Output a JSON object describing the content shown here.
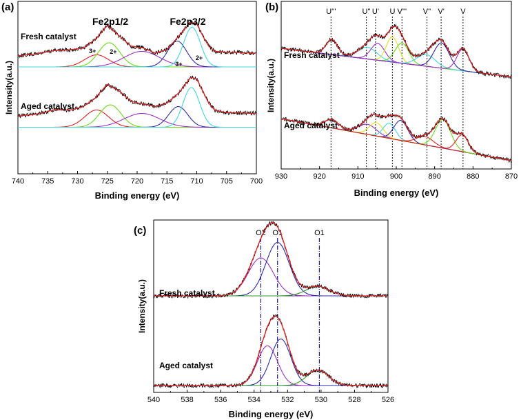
{
  "chart_data": [
    {
      "type": "line",
      "panel": "(a)",
      "title": "",
      "xlabel": "Binding energy (eV)",
      "ylabel": "Intensity(a.u.)",
      "xlim": [
        740,
        700
      ],
      "xticks": [
        740,
        735,
        730,
        725,
        720,
        715,
        710,
        705,
        700
      ],
      "samples": [
        {
          "name": "Fresh catalyst",
          "baseline": 0.62,
          "envelope": [
            [
              740,
              0.685
            ],
            [
              737,
              0.695
            ],
            [
              734,
              0.715
            ],
            [
              731,
              0.72
            ],
            [
              729,
              0.73
            ],
            [
              727,
              0.78
            ],
            [
              725,
              0.86
            ],
            [
              723,
              0.8
            ],
            [
              721,
              0.74
            ],
            [
              719,
              0.73
            ],
            [
              717,
              0.7
            ],
            [
              715,
              0.72
            ],
            [
              713,
              0.8
            ],
            [
              711,
              0.88
            ],
            [
              710,
              0.87
            ],
            [
              709,
              0.8
            ],
            [
              708,
              0.74
            ],
            [
              707,
              0.71
            ],
            [
              705,
              0.705
            ],
            [
              700,
              0.7
            ]
          ],
          "components": [
            {
              "name": "Fe3+ (2p1/2)",
              "center": 726.8,
              "height": 0.07,
              "width": 2.0,
              "color": "#e02020"
            },
            {
              "name": "Fe2+ (2p1/2)",
              "center": 724.7,
              "height": 0.14,
              "width": 1.8,
              "color": "#66dd11"
            },
            {
              "name": "satellite",
              "center": 719.2,
              "height": 0.09,
              "width": 3.0,
              "color": "#a030c8"
            },
            {
              "name": "Fe3+ (2p3/2)",
              "center": 713.3,
              "height": 0.15,
              "width": 1.6,
              "color": "#2a2ab0"
            },
            {
              "name": "Fe2+ (2p3/2)",
              "center": 710.8,
              "height": 0.23,
              "width": 1.4,
              "color": "#3dd8e0"
            }
          ],
          "annotations": [
            {
              "text": "Fe2p1/2",
              "at": 724.5
            },
            {
              "text": "Fe2p3/2",
              "at": 711.5
            },
            {
              "text": "3+",
              "at": 727.5
            },
            {
              "text": "2+",
              "at": 724.0
            },
            {
              "text": "3+",
              "at": 713.0
            },
            {
              "text": "2+",
              "at": 709.6
            }
          ]
        },
        {
          "name": "Aged catalyst",
          "baseline": 0.27,
          "envelope": [
            [
              740,
              0.335
            ],
            [
              737,
              0.345
            ],
            [
              734,
              0.37
            ],
            [
              731,
              0.37
            ],
            [
              729,
              0.39
            ],
            [
              727,
              0.44
            ],
            [
              725,
              0.52
            ],
            [
              723,
              0.48
            ],
            [
              721,
              0.42
            ],
            [
              719,
              0.405
            ],
            [
              717,
              0.39
            ],
            [
              715,
              0.41
            ],
            [
              713,
              0.47
            ],
            [
              711,
              0.56
            ],
            [
              710,
              0.55
            ],
            [
              709,
              0.48
            ],
            [
              708,
              0.41
            ],
            [
              707,
              0.37
            ],
            [
              705,
              0.355
            ],
            [
              700,
              0.35
            ]
          ],
          "components": [
            {
              "name": "Fe3+ (2p1/2)",
              "center": 726.8,
              "height": 0.1,
              "width": 2.0,
              "color": "#e02020"
            },
            {
              "name": "Fe2+ (2p1/2)",
              "center": 724.5,
              "height": 0.13,
              "width": 1.8,
              "color": "#66dd11"
            },
            {
              "name": "satellite",
              "center": 719.2,
              "height": 0.08,
              "width": 3.0,
              "color": "#a030c8"
            },
            {
              "name": "Fe3+ (2p3/2)",
              "center": 713.1,
              "height": 0.12,
              "width": 1.6,
              "color": "#2a2ab0"
            },
            {
              "name": "Fe2+ (2p3/2)",
              "center": 710.9,
              "height": 0.23,
              "width": 1.4,
              "color": "#3dd8e0"
            }
          ],
          "annotations": []
        }
      ]
    },
    {
      "type": "line",
      "panel": "(b)",
      "title": "",
      "xlabel": "Binding energy (eV)",
      "ylabel": "Intensity(a.u.)",
      "xlim": [
        930,
        870
      ],
      "xticks": [
        930,
        920,
        910,
        900,
        890,
        880,
        870
      ],
      "peak_labels": [
        {
          "text": "U'''",
          "at": 917
        },
        {
          "text": "U''",
          "at": 907.8
        },
        {
          "text": "U'",
          "at": 905.4
        },
        {
          "text": "U",
          "at": 901
        },
        {
          "text": "V'''",
          "at": 898.5
        },
        {
          "text": "V''",
          "at": 892
        },
        {
          "text": "V'",
          "at": 888.3
        },
        {
          "text": "V",
          "at": 882.6
        }
      ],
      "samples": [
        {
          "name": "Fresh catalyst",
          "baseline_linear": [
            [
              930,
              0.72
            ],
            [
              870,
              0.55
            ]
          ],
          "components": [
            {
              "name": "U'''",
              "center": 916.8,
              "height": 0.09,
              "width": 1.5,
              "color": "#2a2ab0"
            },
            {
              "name": "U''",
              "center": 907.5,
              "height": 0.07,
              "width": 2.5,
              "color": "#3dd8e0"
            },
            {
              "name": "U'",
              "center": 904.8,
              "height": 0.1,
              "width": 1.8,
              "color": "#a030c8"
            },
            {
              "name": "U",
              "center": 901.0,
              "height": 0.15,
              "width": 1.6,
              "color": "#e0e020"
            },
            {
              "name": "V'''",
              "center": 898.5,
              "height": 0.12,
              "width": 1.8,
              "color": "#66dd11"
            },
            {
              "name": "V''",
              "center": 892.2,
              "height": 0.07,
              "width": 2.4,
              "color": "#3dd8e0"
            },
            {
              "name": "V'",
              "center": 888.2,
              "height": 0.15,
              "width": 2.0,
              "color": "#2a2ab0"
            },
            {
              "name": "V",
              "center": 882.6,
              "height": 0.13,
              "width": 1.6,
              "color": "#a030c8"
            }
          ]
        },
        {
          "name": "Aged catalyst",
          "baseline_linear": [
            [
              930,
              0.3
            ],
            [
              870,
              0.05
            ]
          ],
          "components": [
            {
              "name": "U'''",
              "center": 916.8,
              "height": 0.05,
              "width": 1.8,
              "color": "#66dd11"
            },
            {
              "name": "U''",
              "center": 907.5,
              "height": 0.06,
              "width": 2.4,
              "color": "#a030c8"
            },
            {
              "name": "U'",
              "center": 905.2,
              "height": 0.08,
              "width": 1.8,
              "color": "#e0e020"
            },
            {
              "name": "U",
              "center": 901.8,
              "height": 0.09,
              "width": 1.6,
              "color": "#3dd8e0"
            },
            {
              "name": "V'''",
              "center": 898.8,
              "height": 0.12,
              "width": 1.8,
              "color": "#2a2ab0"
            },
            {
              "name": "V''",
              "center": 892.5,
              "height": 0.05,
              "width": 2.2,
              "color": "#e02020"
            },
            {
              "name": "V'",
              "center": 887.8,
              "height": 0.17,
              "width": 2.0,
              "color": "#66dd11"
            },
            {
              "name": "V",
              "center": 882.8,
              "height": 0.1,
              "width": 1.6,
              "color": "#e02020"
            }
          ]
        }
      ]
    },
    {
      "type": "line",
      "panel": "(c)",
      "title": "",
      "xlabel": "Binding energy (eV)",
      "ylabel": "Intensity(a.u.)",
      "xlim": [
        540,
        526
      ],
      "xticks": [
        540,
        538,
        536,
        534,
        532,
        530,
        528,
        526
      ],
      "peak_labels": [
        {
          "text": "O2",
          "at": 533.6
        },
        {
          "text": "O1",
          "at": 532.6
        },
        {
          "text": "O1",
          "at": 530.1
        }
      ],
      "samples": [
        {
          "name": "Fresh catalyst",
          "baseline": 0.56,
          "components": [
            {
              "name": "O2",
              "center": 533.6,
              "height": 0.22,
              "width": 0.75,
              "color": "#a030c8"
            },
            {
              "name": "O1 (532.6)",
              "center": 532.6,
              "height": 0.31,
              "width": 0.7,
              "color": "#2a2ab0"
            },
            {
              "name": "O1 (530.1)",
              "center": 530.2,
              "height": 0.055,
              "width": 0.7,
              "color": "#2a9a2a"
            }
          ]
        },
        {
          "name": "Aged catalyst",
          "baseline": 0.04,
          "components": [
            {
              "name": "O2",
              "center": 533.2,
              "height": 0.23,
              "width": 0.6,
              "color": "#a030c8"
            },
            {
              "name": "O1 (532.6)",
              "center": 532.4,
              "height": 0.27,
              "width": 0.6,
              "color": "#2a2ab0"
            },
            {
              "name": "O1 (530.1)",
              "center": 530.2,
              "height": 0.09,
              "width": 0.65,
              "color": "#2a9a2a"
            }
          ]
        }
      ]
    }
  ]
}
